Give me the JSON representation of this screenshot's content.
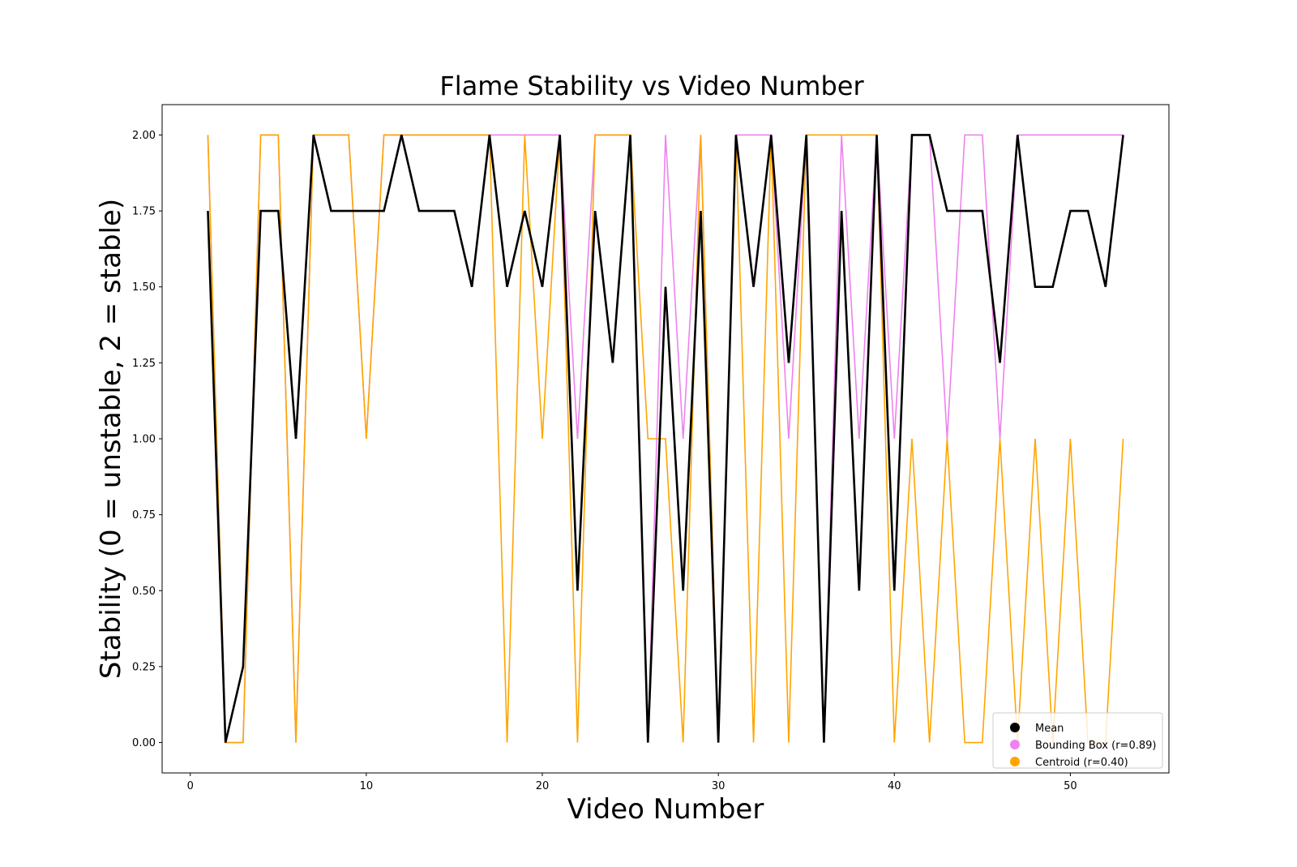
{
  "chart_data": {
    "type": "line",
    "title": "Flame Stability vs Video Number",
    "xlabel": "Video Number",
    "ylabel": "Stability (0 = unstable, 2 = stable)",
    "xlim": [
      -1.6,
      55.6
    ],
    "ylim": [
      -0.1,
      2.1
    ],
    "xticks": [
      0,
      10,
      20,
      30,
      40,
      50
    ],
    "yticks": [
      0.0,
      0.25,
      0.5,
      0.75,
      1.0,
      1.25,
      1.5,
      1.75,
      2.0
    ],
    "ytick_labels": [
      "0.00",
      "0.25",
      "0.50",
      "0.75",
      "1.00",
      "1.25",
      "1.50",
      "1.75",
      "2.00"
    ],
    "grid": false,
    "legend_position": "bottom-right",
    "x": [
      1,
      2,
      3,
      4,
      5,
      6,
      7,
      8,
      9,
      10,
      11,
      12,
      13,
      14,
      15,
      16,
      17,
      18,
      19,
      20,
      21,
      22,
      23,
      24,
      25,
      26,
      27,
      28,
      29,
      30,
      31,
      32,
      33,
      34,
      35,
      36,
      37,
      38,
      39,
      40,
      41,
      42,
      43,
      44,
      45,
      46,
      47,
      48,
      49,
      50,
      51,
      52,
      53
    ],
    "series": [
      {
        "name": "Bounding Box (r=0.89)",
        "color": "#ee82ee",
        "values": [
          2,
          0,
          0,
          2,
          2,
          0,
          2,
          2,
          2,
          1,
          2,
          2,
          2,
          2,
          2,
          2,
          2,
          2,
          2,
          2,
          2,
          1,
          2,
          2,
          2,
          0,
          2,
          1,
          2,
          0,
          2,
          2,
          2,
          1,
          2,
          0,
          2,
          1,
          2,
          1,
          2,
          2,
          1,
          2,
          2,
          1,
          2,
          2,
          2,
          2,
          2,
          2,
          2
        ]
      },
      {
        "name": "Centroid (r=0.40)",
        "color": "#ffa500",
        "values": [
          2,
          0,
          0,
          2,
          2,
          0,
          2,
          2,
          2,
          1,
          2,
          2,
          2,
          2,
          2,
          2,
          2,
          0,
          2,
          1,
          2,
          0,
          2,
          2,
          2,
          1,
          1,
          0,
          2,
          0,
          2,
          0,
          2,
          0,
          2,
          2,
          2,
          2,
          2,
          0,
          1,
          0,
          1,
          0,
          0,
          1,
          0,
          1,
          0,
          1,
          0,
          0,
          1
        ]
      },
      {
        "name": "Mean",
        "color": "#000000",
        "values": [
          1.75,
          0,
          0.25,
          1.75,
          1.75,
          1.0,
          2.0,
          1.75,
          1.75,
          1.75,
          1.75,
          2.0,
          1.75,
          1.75,
          1.75,
          1.5,
          2.0,
          1.5,
          1.75,
          1.5,
          2.0,
          0.5,
          1.75,
          1.25,
          2.0,
          0,
          1.5,
          0.5,
          1.75,
          0,
          2.0,
          1.5,
          2.0,
          1.25,
          2.0,
          0,
          1.75,
          0.5,
          2.0,
          0.5,
          2.0,
          2.0,
          1.75,
          1.75,
          1.75,
          1.25,
          2.0,
          1.5,
          1.5,
          1.75,
          1.75,
          1.5,
          2.0
        ]
      }
    ],
    "legend": [
      {
        "label": "Mean",
        "color": "#000000"
      },
      {
        "label": "Bounding Box (r=0.89)",
        "color": "#ee82ee"
      },
      {
        "label": "Centroid (r=0.40)",
        "color": "#ffa500"
      }
    ]
  }
}
